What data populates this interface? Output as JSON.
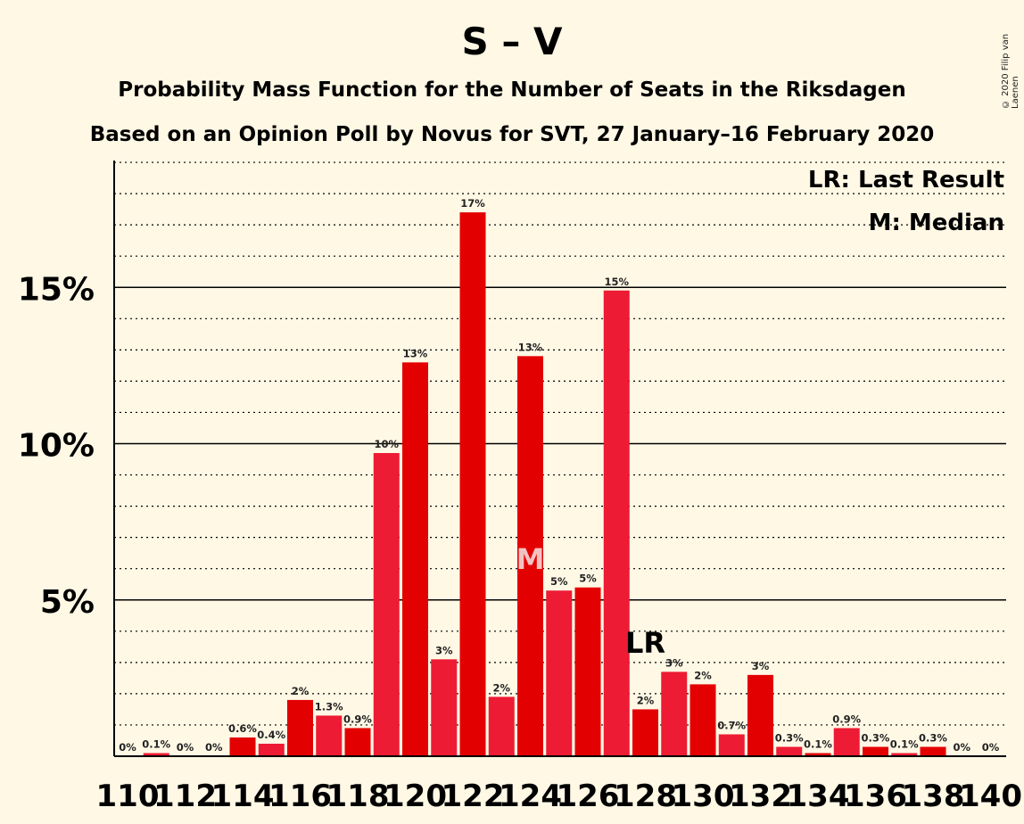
{
  "title": "S – V",
  "subtitle1": "Probability Mass Function for the Number of Seats in the Riksdagen",
  "subtitle2": "Based on an Opinion Poll by Novus for SVT, 27 January–16 February 2020",
  "copyright": "© 2020 Filip van Laenen",
  "legend": {
    "last_result": "LR: Last Result",
    "median": "M: Median"
  },
  "markers": {
    "last_result_label": "LR",
    "median_label": "M",
    "last_result_seat": 128,
    "median_seat": 124
  },
  "colors": {
    "background": "#FFF8E5",
    "bar_dark": "#E30000",
    "bar_light": "#ED1B34",
    "median_text": "#F2C2C2"
  },
  "chart_data": {
    "type": "bar",
    "x": [
      110,
      111,
      112,
      113,
      114,
      115,
      116,
      117,
      118,
      119,
      120,
      121,
      122,
      123,
      124,
      125,
      126,
      127,
      128,
      129,
      130,
      131,
      132,
      133,
      134,
      135,
      136,
      137,
      138,
      139,
      140
    ],
    "values": [
      0,
      0.1,
      0,
      0,
      0.6,
      0.4,
      1.8,
      1.3,
      0.9,
      9.7,
      12.6,
      3.1,
      17.4,
      1.9,
      12.8,
      5.3,
      5.4,
      14.9,
      1.5,
      2.7,
      2.3,
      0.7,
      2.6,
      0.3,
      0.1,
      0.9,
      0.3,
      0.1,
      0.3,
      0,
      0
    ],
    "bar_labels": [
      "0%",
      "0.1%",
      "0%",
      "0%",
      "0.6%",
      "0.4%",
      "2%",
      "1.3%",
      "0.9%",
      "10%",
      "13%",
      "3%",
      "17%",
      "2%",
      "13%",
      "5%",
      "5%",
      "15%",
      "2%",
      "3%",
      "2%",
      "0.7%",
      "3%",
      "0.3%",
      "0.1%",
      "0.9%",
      "0.3%",
      "0.1%",
      "0.3%",
      "0%",
      "0%"
    ],
    "x_tick_labels": [
      "110",
      "112",
      "114",
      "116",
      "118",
      "120",
      "122",
      "124",
      "126",
      "128",
      "130",
      "132",
      "134",
      "136",
      "138",
      "140"
    ],
    "y_ticks": [
      5,
      10,
      15
    ],
    "y_tick_labels": [
      "5%",
      "10%",
      "15%"
    ],
    "ylim": [
      0,
      19.4
    ],
    "grid": "dotted every 1%, solid at 5% intervals",
    "legend_position": "top-right"
  }
}
